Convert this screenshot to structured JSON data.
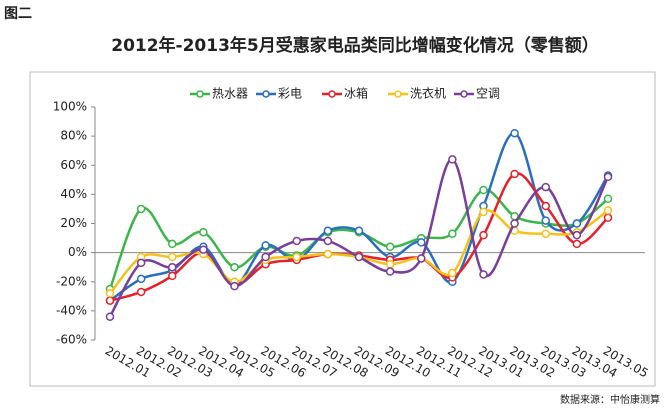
{
  "chart_data": {
    "type": "line",
    "figure_label": "图二",
    "title": "2012年-2013年5月受惠家电品类同比增幅变化情况（零售额）",
    "source": "数据来源：中怡康测算",
    "categories": [
      "2012.01",
      "2012.02",
      "2012.03",
      "2012.04",
      "2012.05",
      "2012.06",
      "2012.07",
      "2012.08",
      "2012.09",
      "2012.10",
      "2012.11",
      "2012.12",
      "2013.01",
      "2013.02",
      "2013.03",
      "2013.04",
      "2013.05"
    ],
    "series": [
      {
        "name": "热水器",
        "color": "#3cb54a",
        "values": [
          -25,
          30,
          6,
          14,
          -10,
          4,
          -2,
          14,
          14,
          4,
          10,
          13,
          43,
          25,
          20,
          20,
          37
        ]
      },
      {
        "name": "彩电",
        "color": "#2a6fbf",
        "values": [
          -33,
          -18,
          -12,
          4,
          -22,
          5,
          -5,
          15,
          15,
          -3,
          7,
          -20,
          32,
          82,
          22,
          20,
          53
        ]
      },
      {
        "name": "冰箱",
        "color": "#e8202a",
        "values": [
          -33,
          -27,
          -16,
          0,
          -22,
          -8,
          -5,
          -1,
          -2,
          -5,
          -4,
          -17,
          12,
          54,
          32,
          6,
          24
        ]
      },
      {
        "name": "洗衣机",
        "color": "#f5c21b",
        "values": [
          -28,
          -3,
          -3,
          -1,
          -20,
          -5,
          -3,
          -1,
          -3,
          -8,
          -4,
          -14,
          28,
          15,
          13,
          14,
          29
        ]
      },
      {
        "name": "空调",
        "color": "#7a3d9a",
        "values": [
          -44,
          -7,
          -10,
          2,
          -23,
          -3,
          8,
          8,
          -3,
          -13,
          -4,
          64,
          -15,
          20,
          45,
          12,
          52
        ]
      }
    ],
    "ylim": [
      -60,
      100
    ],
    "yticks": [
      {
        "value": -60,
        "label": "-60%"
      },
      {
        "value": -40,
        "label": "-40%"
      },
      {
        "value": -20,
        "label": "-20%"
      },
      {
        "value": 0,
        "label": "0%"
      },
      {
        "value": 20,
        "label": "20%"
      },
      {
        "value": 40,
        "label": "40%"
      },
      {
        "value": 60,
        "label": "60%"
      },
      {
        "value": 80,
        "label": "80%"
      },
      {
        "value": 100,
        "label": "100%"
      }
    ],
    "grid": false,
    "legend": "top"
  }
}
